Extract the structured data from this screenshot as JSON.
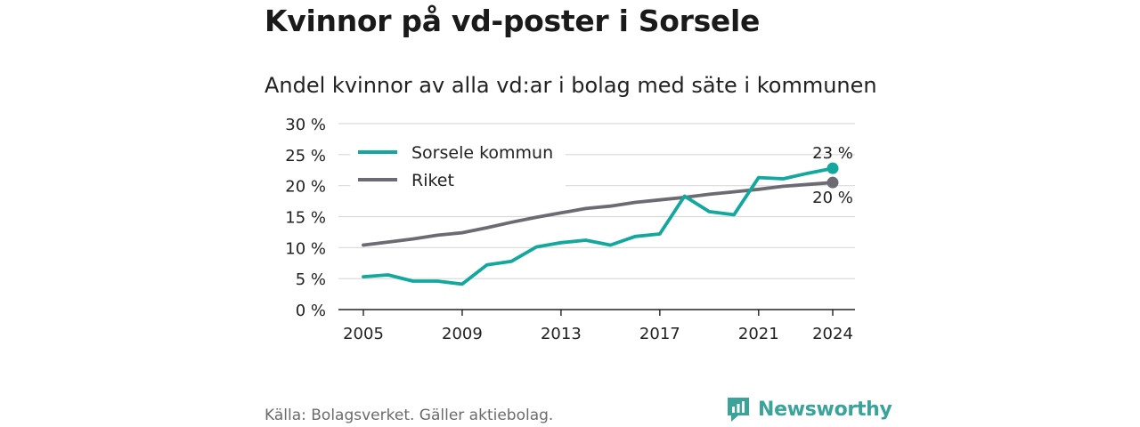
{
  "title": "Kvinnor på vd-poster i Sorsele",
  "subtitle": "Andel kvinnor av alla vd:ar i bolag med säte i kommunen",
  "source": "Källa: Bolagsverket. Gäller aktiebolag.",
  "brand": {
    "name": "Newsworthy",
    "icon": "newsworthy-logo-icon",
    "color": "#3aa39a"
  },
  "chart_data": {
    "type": "line",
    "x": [
      2005,
      2006,
      2007,
      2008,
      2009,
      2010,
      2011,
      2012,
      2013,
      2014,
      2015,
      2016,
      2017,
      2018,
      2019,
      2020,
      2021,
      2022,
      2023,
      2024
    ],
    "series": [
      {
        "name": "Sorsele kommun",
        "color": "#12a89d",
        "values": [
          5.3,
          5.6,
          4.6,
          4.6,
          4.1,
          7.2,
          7.8,
          10.1,
          10.8,
          11.2,
          10.4,
          11.8,
          12.2,
          18.3,
          15.8,
          15.3,
          21.3,
          21.1,
          22.0,
          22.8
        ],
        "end_label": "23 %"
      },
      {
        "name": "Riket",
        "color": "#6c6b74",
        "values": [
          10.4,
          10.9,
          11.4,
          12.0,
          12.4,
          13.2,
          14.1,
          14.9,
          15.6,
          16.3,
          16.7,
          17.3,
          17.7,
          18.1,
          18.6,
          19.0,
          19.4,
          19.9,
          20.2,
          20.5
        ],
        "end_label": "20 %"
      }
    ],
    "x_ticks": [
      2005,
      2009,
      2013,
      2017,
      2021,
      2024
    ],
    "y_ticks": [
      0,
      5,
      10,
      15,
      20,
      25,
      30
    ],
    "y_tick_labels": [
      "0 %",
      "5 %",
      "10 %",
      "15 %",
      "20 %",
      "25 %",
      "30 %"
    ],
    "ylim": [
      0,
      30
    ],
    "xlim": [
      2005,
      2024
    ],
    "grid": true,
    "legend_position": "top-left"
  }
}
